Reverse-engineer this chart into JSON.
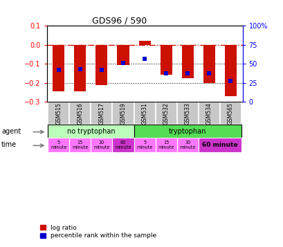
{
  "title": "GDS96 / 590",
  "samples": [
    "GSM515",
    "GSM516",
    "GSM517",
    "GSM519",
    "GSM531",
    "GSM532",
    "GSM533",
    "GSM534",
    "GSM565"
  ],
  "log_ratio": [
    -0.245,
    -0.245,
    -0.21,
    -0.105,
    0.02,
    -0.155,
    -0.175,
    -0.2,
    -0.27
  ],
  "pct_ranks": [
    42,
    43,
    42,
    51,
    57,
    38,
    38,
    38,
    28
  ],
  "ylim_left": [
    -0.3,
    0.1
  ],
  "bar_color": "#cc1100",
  "dot_color": "#0000cc",
  "agent_no_tryp_color": "#bbffbb",
  "agent_tryp_color": "#55dd55",
  "time_color": "#ff77ff",
  "time_60min_color": "#cc33cc",
  "gsm_bg_color": "#c8c8c8",
  "agent_no_tryp": "no tryptophan",
  "agent_tryp": "tryptophan",
  "no_tryp_count": 4,
  "tryp_count": 5,
  "legend_items": [
    "log ratio",
    "percentile rank within the sample"
  ]
}
